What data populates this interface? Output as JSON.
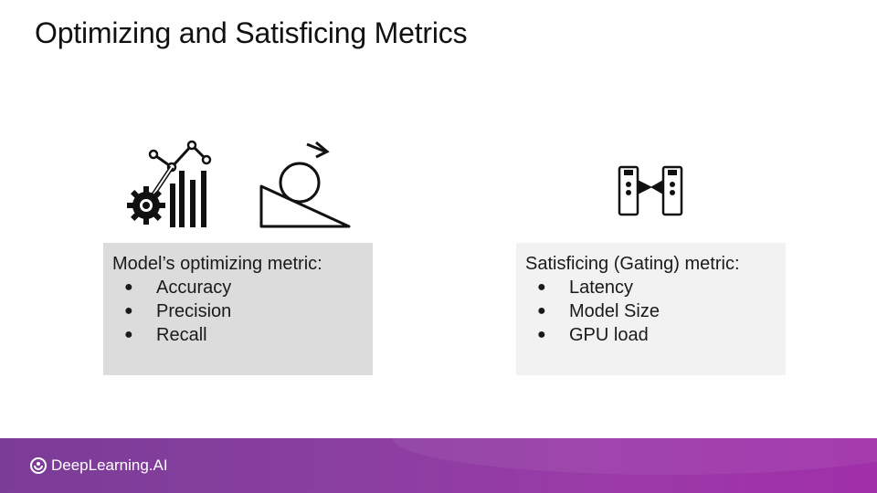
{
  "slide": {
    "title": "Optimizing and Satisficing Metrics"
  },
  "optimizing": {
    "heading": "Model’s optimizing metric:",
    "items": [
      "Accuracy",
      "Precision",
      "Recall"
    ]
  },
  "satisficing": {
    "heading": "Satisficing (Gating) metric:",
    "items": [
      "Latency",
      "Model Size",
      "GPU load"
    ]
  },
  "footer": {
    "brand": "DeepLearning.AI"
  },
  "icons": {
    "chart_gear": "chart-gear-icon",
    "ball_slope": "ball-on-slope-icon",
    "turnstile": "turnstile-gate-icon",
    "logo": "deeplearning-logo-icon"
  },
  "colors": {
    "optimizing_box": "#dcdcdc",
    "satisficing_box": "#f2f2f2",
    "footer_purple": "#8a3fa0"
  }
}
